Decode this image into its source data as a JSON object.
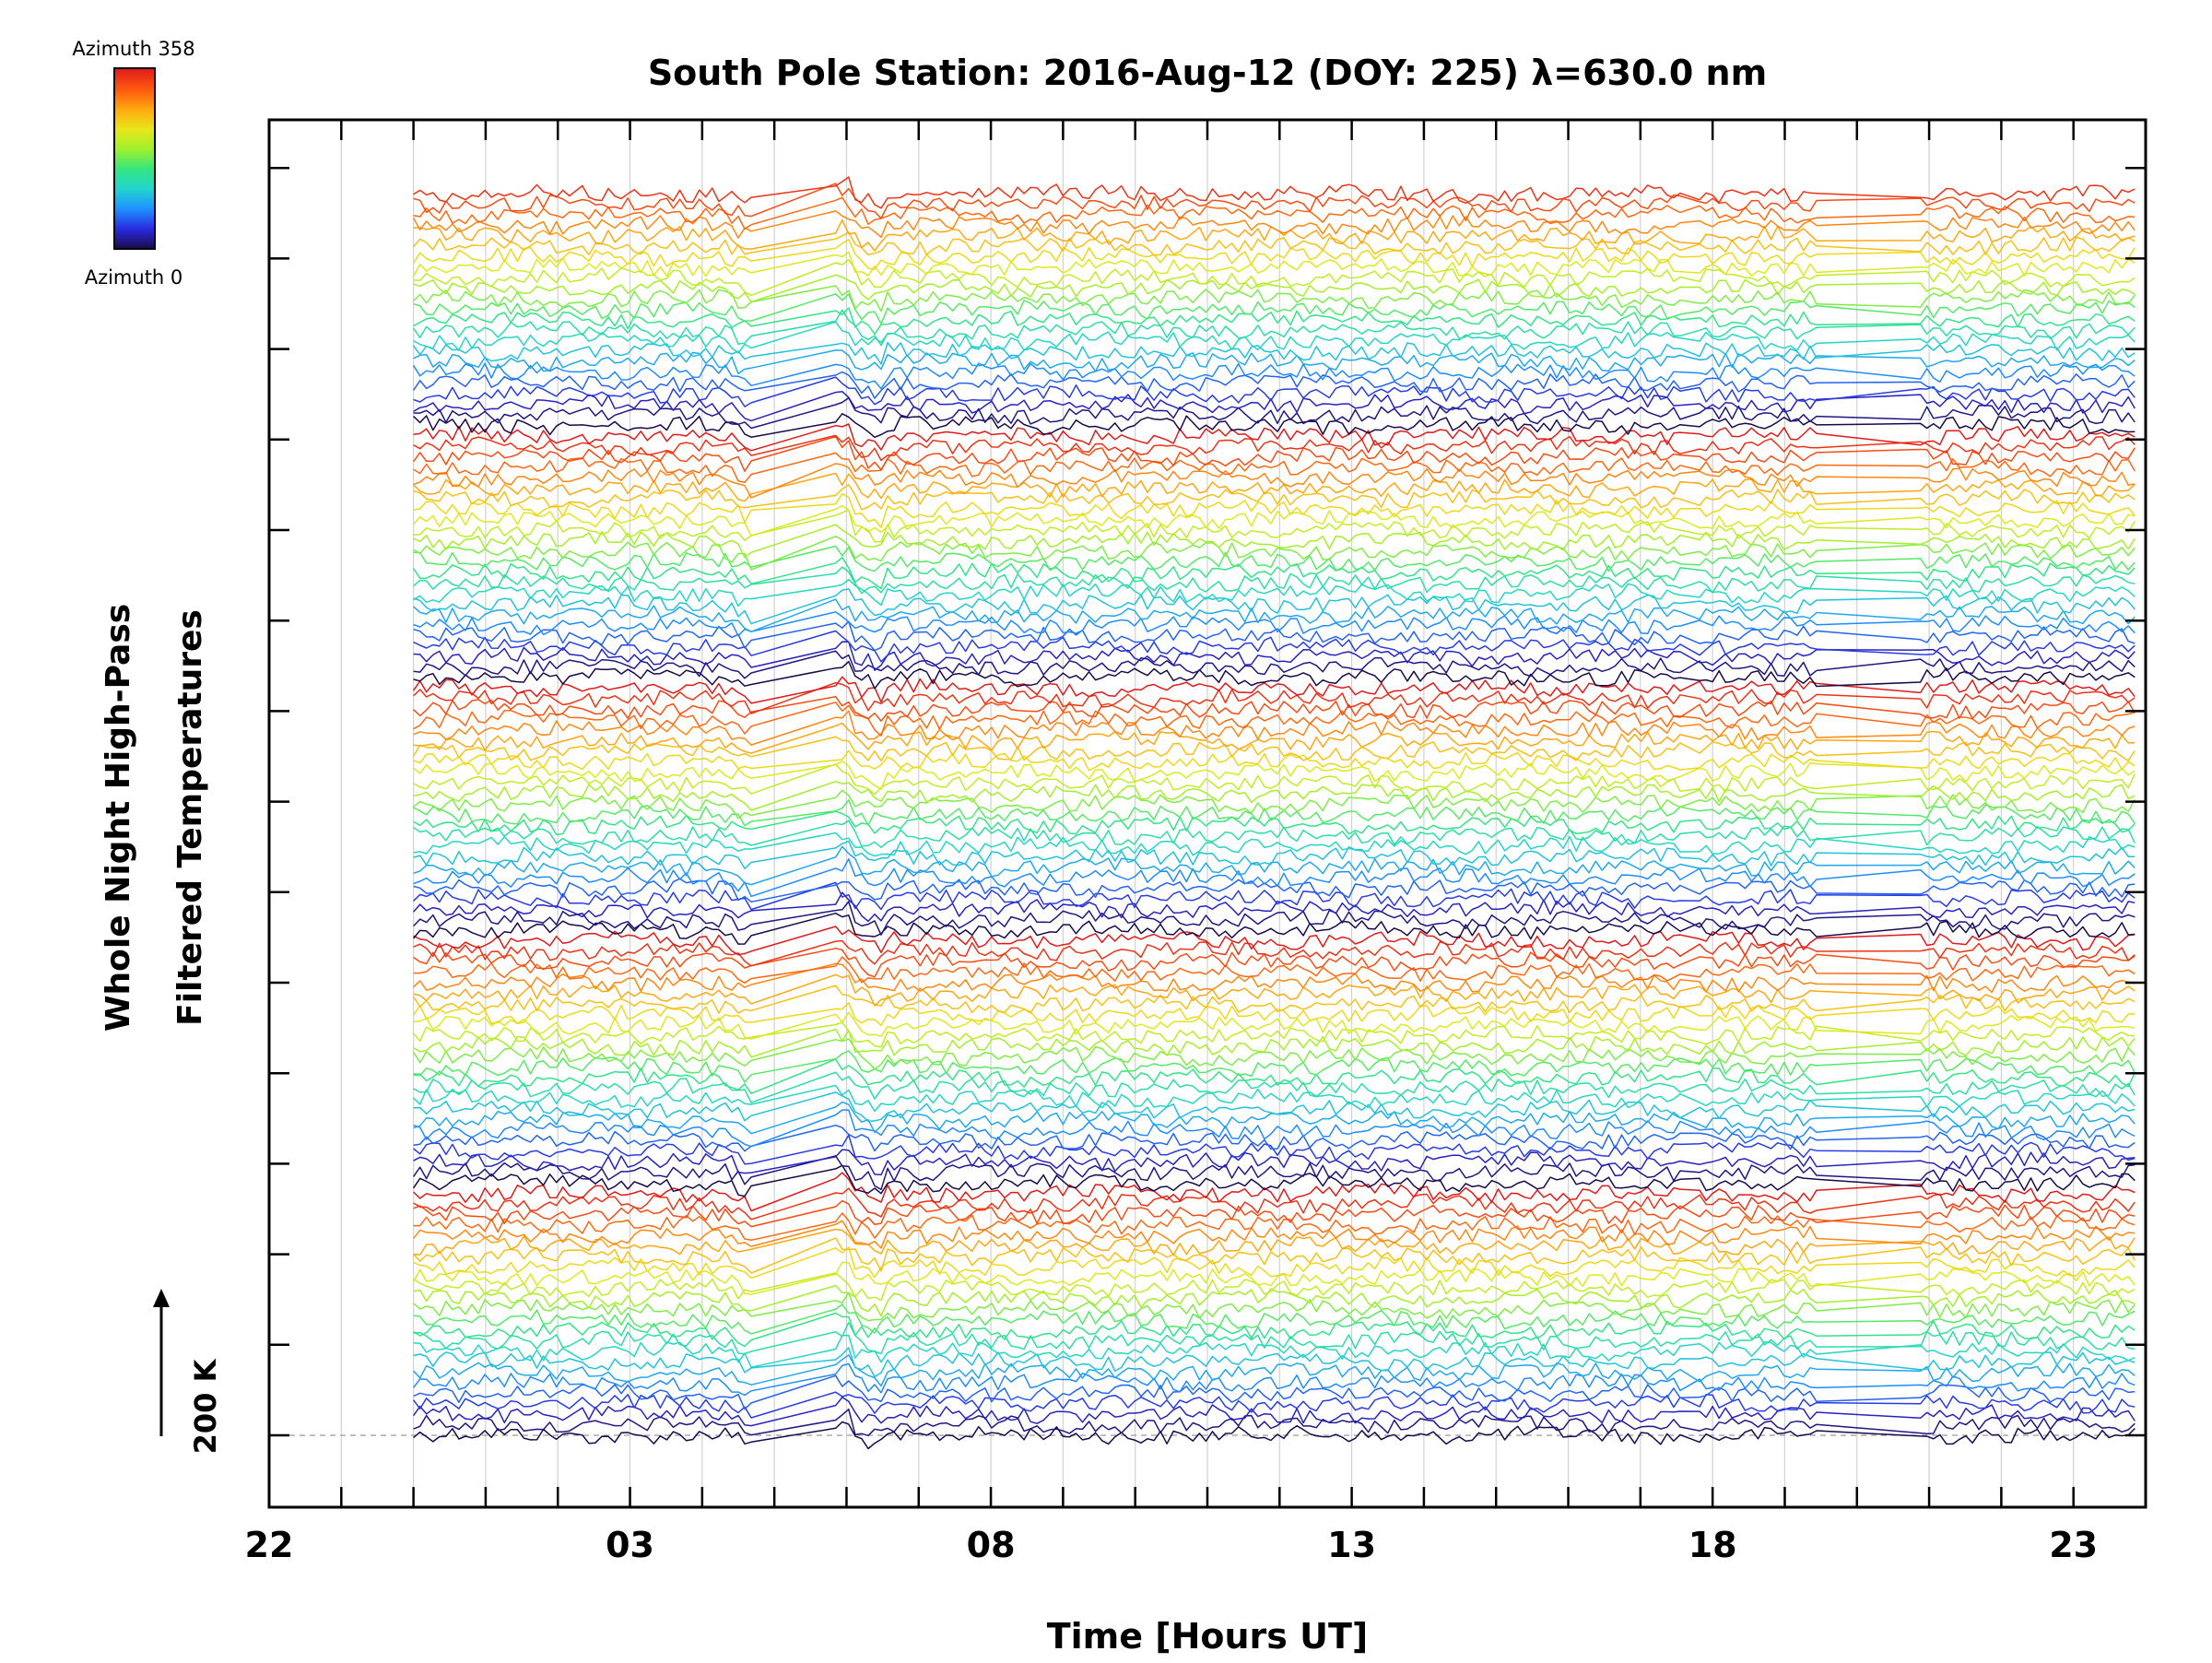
{
  "chart_data": {
    "type": "line",
    "title": "South Pole Station: 2016-Aug-12 (DOY: 225) λ=630.0 nm",
    "xlabel": "Time [Hours UT]",
    "ylabel_line1": "Whole Night High-Pass",
    "ylabel_line2": "Filtered Temperatures",
    "xlim": [
      22,
      48
    ],
    "x_tick_labels": [
      {
        "hour": 22,
        "label": "22"
      },
      {
        "hour": 27,
        "label": "03"
      },
      {
        "hour": 32,
        "label": "08"
      },
      {
        "hour": 37,
        "label": "13"
      },
      {
        "hour": 42,
        "label": "18"
      },
      {
        "hour": 47,
        "label": "23"
      }
    ],
    "grid": true,
    "n_traces": 119,
    "trace_offset_k": 200,
    "data_start_hour": 24.0,
    "data_end_hour": 47.9,
    "data_gaps_hours": [
      [
        26.2,
        26.3
      ],
      [
        28.7,
        29.8
      ],
      [
        41.6,
        41.8
      ],
      [
        43.5,
        44.8
      ]
    ],
    "scale_bar_label": "200 K",
    "colorbar": {
      "top_label": "Azimuth 358",
      "bottom_label": "Azimuth 0",
      "min": 0,
      "max": 358,
      "colormap": "rainbow",
      "stops": [
        "#1a0a4a",
        "#2a2adf",
        "#1e90ff",
        "#22d4d0",
        "#33e680",
        "#9ef02c",
        "#e8e81a",
        "#ffaa10",
        "#ff5a10",
        "#e01a1a"
      ]
    }
  }
}
